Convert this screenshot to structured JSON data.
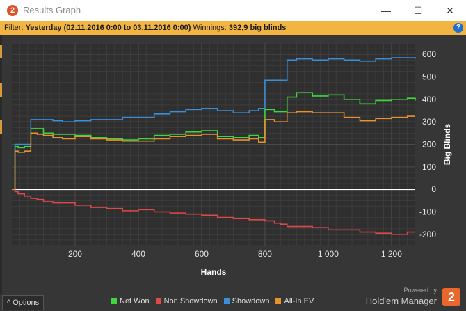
{
  "window": {
    "title": "Results Graph",
    "icon_text": "2",
    "minimize": "—",
    "maximize": "☐",
    "close": "✕"
  },
  "filter": {
    "label": "Filter:",
    "range": "Yesterday (02.11.2016 0:00 to 03.11.2016 0:00)",
    "winnings_label": "Winnings:",
    "winnings_value": "392,9 big blinds",
    "help": "?"
  },
  "footer": {
    "options_label": "Options",
    "options_icon": "^",
    "powered_by": "Powered by",
    "brand": "Hold'em Manager",
    "brand_logo": "2"
  },
  "colors": {
    "net_won": "#3fd63f",
    "non_showdown": "#e14848",
    "showdown": "#3b8fd8",
    "all_in_ev": "#e8922e"
  },
  "chart_data": {
    "type": "line",
    "title": "",
    "xlabel": "Hands",
    "ylabel": "Big Blinds",
    "xlim": [
      0,
      1275
    ],
    "ylim": [
      -250,
      650
    ],
    "xticks": [
      200,
      400,
      600,
      800,
      1000,
      1200
    ],
    "xtick_labels": [
      "200",
      "400",
      "600",
      "800",
      "1 000",
      "1 200"
    ],
    "yticks": [
      -200,
      -100,
      0,
      100,
      200,
      300,
      400,
      500,
      600
    ],
    "yaxis_side": "right",
    "grid": true,
    "legend": "bottom",
    "x": [
      0,
      10,
      20,
      40,
      60,
      80,
      100,
      130,
      160,
      200,
      250,
      300,
      350,
      400,
      450,
      500,
      550,
      600,
      650,
      700,
      750,
      780,
      800,
      830,
      850,
      870,
      900,
      950,
      1000,
      1050,
      1100,
      1150,
      1200,
      1250,
      1275
    ],
    "series": [
      {
        "name": "Net Won",
        "color": "#3fd63f",
        "values": [
          0,
          190,
          185,
          190,
          270,
          270,
          250,
          245,
          245,
          240,
          230,
          225,
          220,
          225,
          240,
          245,
          255,
          260,
          235,
          230,
          240,
          230,
          355,
          345,
          345,
          410,
          430,
          415,
          420,
          400,
          380,
          395,
          400,
          405,
          395
        ]
      },
      {
        "name": "Non Showdown",
        "color": "#e14848",
        "values": [
          0,
          -10,
          -20,
          -30,
          -40,
          -45,
          -55,
          -60,
          -60,
          -70,
          -80,
          -85,
          -95,
          -90,
          -100,
          -105,
          -110,
          -115,
          -125,
          -130,
          -135,
          -135,
          -140,
          -150,
          -155,
          -165,
          -165,
          -170,
          -180,
          -180,
          -190,
          -195,
          -200,
          -190,
          -190
        ]
      },
      {
        "name": "Showdown",
        "color": "#3b8fd8",
        "values": [
          0,
          200,
          200,
          200,
          310,
          310,
          310,
          305,
          300,
          305,
          310,
          310,
          320,
          320,
          335,
          345,
          355,
          360,
          350,
          340,
          350,
          360,
          485,
          485,
          485,
          575,
          580,
          575,
          580,
          575,
          570,
          580,
          585,
          585,
          580
        ]
      },
      {
        "name": "All-In EV",
        "color": "#e8922e",
        "values": [
          0,
          170,
          165,
          170,
          250,
          245,
          240,
          230,
          225,
          235,
          225,
          220,
          215,
          215,
          225,
          235,
          240,
          245,
          225,
          220,
          225,
          210,
          310,
          300,
          300,
          340,
          345,
          340,
          340,
          320,
          305,
          315,
          320,
          325,
          325
        ]
      }
    ]
  }
}
